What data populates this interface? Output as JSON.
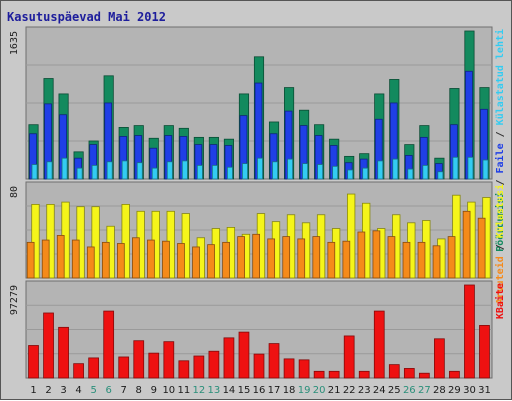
{
  "chart_data": {
    "type": "bar",
    "title": "Kasutuspäevad Mai 2012",
    "categories": [
      "1",
      "2",
      "3",
      "4",
      "5",
      "6",
      "7",
      "8",
      "9",
      "10",
      "11",
      "12",
      "13",
      "14",
      "15",
      "16",
      "17",
      "18",
      "19",
      "20",
      "21",
      "22",
      "23",
      "24",
      "25",
      "26",
      "27",
      "28",
      "29",
      "30",
      "31"
    ],
    "weekend_days": [
      "5",
      "6",
      "12",
      "13",
      "19",
      "20",
      "26",
      "27"
    ],
    "panels": [
      {
        "id": "top",
        "ymax": 1635,
        "ymax_label": "1635",
        "right_labels": [
          "Pöördumisi",
          "Faile",
          "Külastatud lehti"
        ],
        "series": [
          {
            "name": "Pöördumisi",
            "color": "#138a5e",
            "values": [
              600,
              1110,
              940,
              300,
              420,
              1140,
              570,
              590,
              450,
              590,
              560,
              460,
              460,
              440,
              940,
              1350,
              630,
              1010,
              760,
              600,
              440,
              250,
              280,
              940,
              1100,
              380,
              590,
              230,
              1000,
              1635,
              1010
            ]
          },
          {
            "name": "Faile",
            "color": "#1f3fe6",
            "values": [
              500,
              830,
              710,
              230,
              380,
              840,
              470,
              480,
              340,
              480,
              470,
              380,
              380,
              370,
              700,
              1060,
              500,
              750,
              590,
              480,
              370,
              180,
              220,
              660,
              840,
              260,
              460,
              170,
              600,
              1190,
              770
            ]
          },
          {
            "name": "Külastatud lehti",
            "color": "#33ccf2",
            "values": [
              160,
              190,
              230,
              120,
              150,
              190,
              200,
              180,
              120,
              190,
              200,
              150,
              150,
              130,
              170,
              230,
              190,
              220,
              170,
              160,
              140,
              100,
              120,
              200,
              220,
              110,
              150,
              80,
              240,
              240,
              210
            ]
          }
        ]
      },
      {
        "id": "middle",
        "ymax": 80,
        "ymax_label": "80",
        "right_labels": [
          "Arvuteid",
          "Külastusi"
        ],
        "series": [
          {
            "name": "Külastusi",
            "color": "#f5f51a",
            "values": [
              64,
              64,
              66,
              62,
              62,
              45,
              64,
              58,
              58,
              58,
              56,
              35,
              43,
              44,
              38,
              56,
              49,
              55,
              48,
              55,
              43,
              73,
              65,
              43,
              55,
              48,
              50,
              34,
              72,
              66,
              70
            ]
          },
          {
            "name": "Arvuteid",
            "color": "#f58a1a",
            "values": [
              31,
              33,
              37,
              33,
              27,
              31,
              30,
              35,
              33,
              32,
              30,
              27,
              29,
              31,
              36,
              38,
              34,
              36,
              34,
              36,
              31,
              32,
              40,
              41,
              36,
              31,
              31,
              28,
              36,
              58,
              52
            ]
          }
        ]
      },
      {
        "id": "bottom",
        "ymax": 97279,
        "ymax_label": "97279",
        "right_labels": [
          "KBaite"
        ],
        "series": [
          {
            "name": "KBaite",
            "color": "#ee1111",
            "values": [
              34000,
              68000,
              53000,
              15000,
              21000,
              70000,
              22000,
              39000,
              26000,
              38000,
              18000,
              23000,
              28000,
              42000,
              48000,
              25000,
              36000,
              20000,
              19000,
              7000,
              7000,
              44000,
              7000,
              70000,
              14000,
              10000,
              5000,
              41000,
              7000,
              97279,
              55000
            ]
          }
        ]
      }
    ]
  }
}
